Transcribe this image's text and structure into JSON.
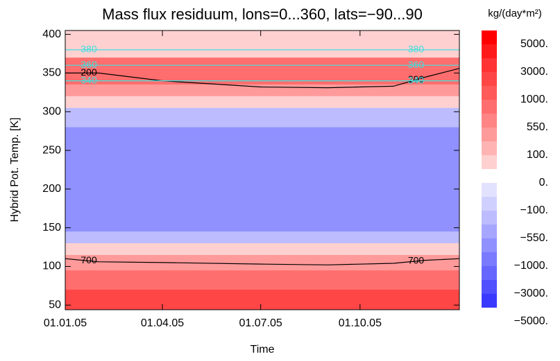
{
  "chart_data": {
    "type": "heatmap",
    "title": "Mass flux residuum, lons=0...360, lats=−90...90",
    "xlabel": "Time",
    "ylabel": "Hybrid Pot. Temp. [K]",
    "xlim": [
      "2005-01-01",
      "2006-01-01"
    ],
    "xticks": [
      {
        "value": "2005-01-01",
        "label": "01.01.05"
      },
      {
        "value": "2005-04-01",
        "label": "01.04.05"
      },
      {
        "value": "2005-07-01",
        "label": "01.07.05"
      },
      {
        "value": "2005-10-01",
        "label": "01.10.05"
      }
    ],
    "ylim": [
      44,
      405
    ],
    "yticks": [
      50,
      100,
      150,
      200,
      250,
      300,
      350,
      400
    ],
    "heatmap": {
      "theta_edges": [
        44,
        70,
        95,
        115,
        130,
        145,
        280,
        305,
        320,
        335,
        370,
        405
      ],
      "values": [
        3000,
        1000,
        550,
        100,
        -100,
        -550,
        -100,
        100,
        550,
        1000,
        100
      ]
    },
    "colorbar": {
      "title": "kg/(day*m²)",
      "levels": [
        {
          "value": 5000,
          "label": "5000."
        },
        {
          "value": 3000,
          "label": "3000."
        },
        {
          "value": 1000,
          "label": "1000."
        },
        {
          "value": 550,
          "label": "550."
        },
        {
          "value": 100,
          "label": "100."
        },
        {
          "value": 0,
          "label": "0."
        },
        {
          "value": -100,
          "label": "−100."
        },
        {
          "value": -550,
          "label": "−550."
        },
        {
          "value": -1000,
          "label": "−1000."
        },
        {
          "value": -3000,
          "label": "−3000."
        },
        {
          "value": -5000,
          "label": "−5000."
        }
      ],
      "colors": [
        "#ff0000",
        "#ff1a1a",
        "#ff3333",
        "#ff4646",
        "#ff5a5a",
        "#ff6e6e",
        "#ff8484",
        "#ff9a9a",
        "#ffb4b4",
        "#ffd0d0",
        "#ffffff",
        "#e2e2ff",
        "#d0d0ff",
        "#bcbcff",
        "#a6a6ff",
        "#9090ff",
        "#7a7aff",
        "#6666ff",
        "#5050ff",
        "#3a3aff"
      ]
    },
    "contours": [
      {
        "label": "700",
        "color": "#000000",
        "x": [
          "2005-01-01",
          "2005-02-01",
          "2005-04-01",
          "2005-07-01",
          "2005-09-01",
          "2005-11-01",
          "2005-12-01",
          "2006-01-01"
        ],
        "y": [
          110,
          106,
          105,
          103,
          102,
          104,
          108,
          110
        ]
      },
      {
        "label": "200",
        "color": "#000000",
        "x": [
          "2005-01-01",
          "2005-02-01",
          "2005-04-01",
          "2005-07-01",
          "2005-09-01",
          "2005-11-01",
          "2005-12-01",
          "2006-01-01"
        ],
        "y": [
          350,
          350,
          340,
          332,
          331,
          333,
          345,
          356
        ]
      },
      {
        "label": "380",
        "color": "#40e0e0",
        "x": [
          "2005-01-01",
          "2006-01-01"
        ],
        "y": [
          380,
          380
        ]
      },
      {
        "label": "360",
        "color": "#40e0e0",
        "x": [
          "2005-01-01",
          "2006-01-01"
        ],
        "y": [
          360,
          360
        ]
      },
      {
        "label": "340",
        "color": "#40e0e0",
        "x": [
          "2005-01-01",
          "2006-01-01"
        ],
        "y": [
          340,
          340
        ]
      }
    ]
  }
}
